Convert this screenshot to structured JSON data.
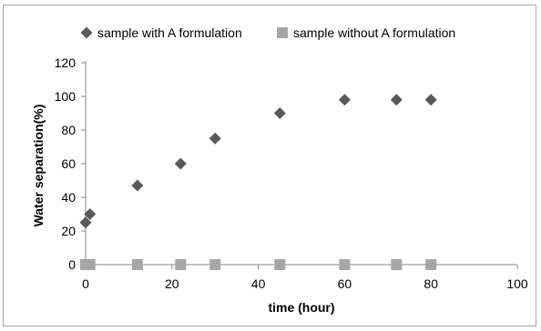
{
  "chart_data": {
    "type": "scatter",
    "xlabel": "time (hour)",
    "ylabel": "Water separation(%)",
    "xlim": [
      0,
      100
    ],
    "ylim": [
      0,
      120
    ],
    "xticks": [
      0,
      20,
      40,
      60,
      80,
      100
    ],
    "yticks": [
      0,
      20,
      40,
      60,
      80,
      100,
      120
    ],
    "grid": false,
    "legend_position": "top",
    "series": [
      {
        "name": "sample with A formulation",
        "marker": "diamond",
        "color": "#595959",
        "x": [
          0,
          1,
          12,
          22,
          30,
          45,
          60,
          72,
          80
        ],
        "y": [
          25,
          30,
          47,
          60,
          75,
          90,
          98,
          98,
          98
        ]
      },
      {
        "name": "sample without A formulation",
        "marker": "square",
        "color": "#a6a6a6",
        "x": [
          0,
          1,
          12,
          22,
          30,
          45,
          60,
          72,
          80
        ],
        "y": [
          0,
          0,
          0,
          0,
          0,
          0,
          0,
          0,
          0
        ]
      }
    ]
  }
}
